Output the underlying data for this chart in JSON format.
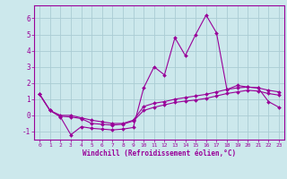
{
  "title": "",
  "xlabel": "Windchill (Refroidissement éolien,°C)",
  "background_color": "#cce8ec",
  "grid_color": "#aaccd4",
  "line_color": "#990099",
  "xlim": [
    -0.5,
    23.5
  ],
  "ylim": [
    -1.5,
    6.8
  ],
  "yticks": [
    -1,
    0,
    1,
    2,
    3,
    4,
    5,
    6
  ],
  "xticks": [
    0,
    1,
    2,
    3,
    4,
    5,
    6,
    7,
    8,
    9,
    10,
    11,
    12,
    13,
    14,
    15,
    16,
    17,
    18,
    19,
    20,
    21,
    22,
    23
  ],
  "line1_x": [
    0,
    1,
    2,
    3,
    4,
    5,
    6,
    7,
    8,
    9,
    10,
    11,
    12,
    13,
    14,
    15,
    16,
    17,
    18,
    19,
    20,
    21,
    22,
    23
  ],
  "line1_y": [
    1.3,
    0.3,
    -0.1,
    -1.2,
    -0.7,
    -0.8,
    -0.85,
    -0.9,
    -0.85,
    -0.75,
    1.7,
    3.0,
    2.5,
    4.8,
    3.7,
    5.0,
    6.2,
    5.1,
    1.6,
    1.85,
    1.75,
    1.7,
    0.85,
    0.5
  ],
  "line2_x": [
    0,
    1,
    2,
    3,
    4,
    5,
    6,
    7,
    8,
    9,
    10,
    11,
    12,
    13,
    14,
    15,
    16,
    17,
    18,
    19,
    20,
    21,
    22,
    23
  ],
  "line2_y": [
    1.3,
    0.3,
    0.0,
    0.0,
    -0.15,
    -0.3,
    -0.4,
    -0.5,
    -0.5,
    -0.3,
    0.55,
    0.75,
    0.85,
    1.0,
    1.1,
    1.2,
    1.3,
    1.45,
    1.6,
    1.7,
    1.75,
    1.7,
    1.55,
    1.45
  ],
  "line3_x": [
    0,
    1,
    2,
    3,
    4,
    5,
    6,
    7,
    8,
    9,
    10,
    11,
    12,
    13,
    14,
    15,
    16,
    17,
    18,
    19,
    20,
    21,
    22,
    23
  ],
  "line3_y": [
    1.3,
    0.3,
    -0.05,
    -0.1,
    -0.2,
    -0.5,
    -0.55,
    -0.6,
    -0.55,
    -0.35,
    0.3,
    0.5,
    0.65,
    0.8,
    0.88,
    0.95,
    1.05,
    1.2,
    1.35,
    1.45,
    1.55,
    1.5,
    1.35,
    1.25
  ]
}
